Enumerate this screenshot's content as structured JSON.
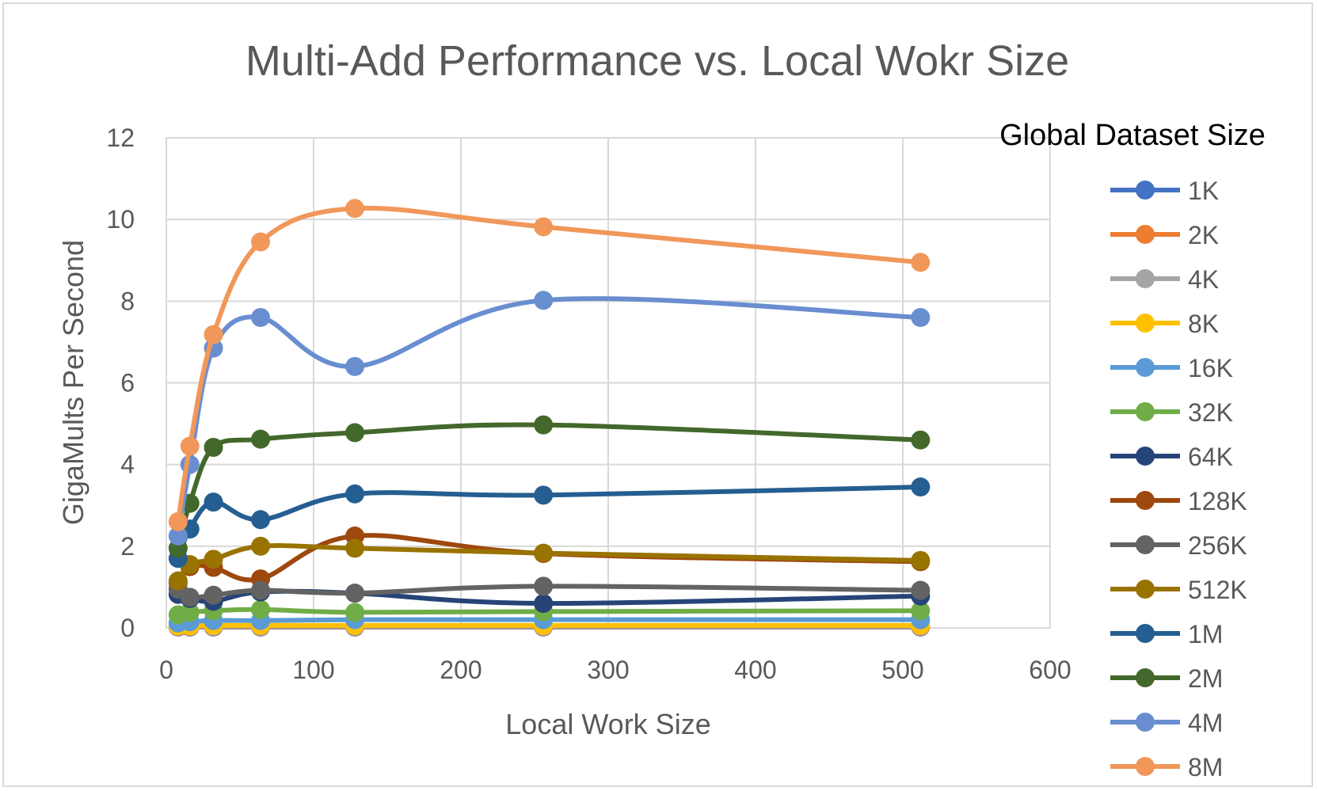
{
  "chart_data": {
    "type": "line",
    "title": "Multi-Add Performance vs. Local Wokr Size",
    "xlabel": "Local Work Size",
    "ylabel": "GigaMults Per Second",
    "xlim": [
      0,
      600
    ],
    "ylim": [
      0,
      12
    ],
    "xticks": [
      0,
      100,
      200,
      300,
      400,
      500,
      600
    ],
    "yticks": [
      0,
      2,
      4,
      6,
      8,
      10,
      12
    ],
    "grid": true,
    "smooth": true,
    "legend_title": "Global Dataset Size",
    "legend_position": "right",
    "x": [
      8,
      16,
      32,
      64,
      128,
      256,
      512
    ],
    "series": [
      {
        "name": "1K",
        "color": "#4472C4",
        "values": [
          0.02,
          0.02,
          0.02,
          0.02,
          0.02,
          0.02,
          0.02
        ]
      },
      {
        "name": "2K",
        "color": "#ED7D31",
        "values": [
          0.03,
          0.03,
          0.03,
          0.03,
          0.03,
          0.03,
          0.03
        ]
      },
      {
        "name": "4K",
        "color": "#A5A5A5",
        "values": [
          0.04,
          0.04,
          0.04,
          0.04,
          0.04,
          0.04,
          0.04
        ]
      },
      {
        "name": "8K",
        "color": "#FFC000",
        "values": [
          0.05,
          0.05,
          0.06,
          0.06,
          0.06,
          0.06,
          0.06
        ]
      },
      {
        "name": "16K",
        "color": "#5B9BD5",
        "values": [
          0.12,
          0.15,
          0.18,
          0.18,
          0.2,
          0.2,
          0.2
        ]
      },
      {
        "name": "32K",
        "color": "#70AD47",
        "values": [
          0.32,
          0.38,
          0.42,
          0.45,
          0.38,
          0.4,
          0.42
        ]
      },
      {
        "name": "64K",
        "color": "#264478",
        "values": [
          0.82,
          0.72,
          0.65,
          0.88,
          0.85,
          0.6,
          0.78
        ]
      },
      {
        "name": "128K",
        "color": "#9E480E",
        "values": [
          1.1,
          1.5,
          1.48,
          1.2,
          2.25,
          1.82,
          1.62
        ]
      },
      {
        "name": "256K",
        "color": "#636363",
        "values": [
          0.95,
          0.75,
          0.8,
          0.92,
          0.85,
          1.02,
          0.92
        ]
      },
      {
        "name": "512K",
        "color": "#997300",
        "values": [
          1.15,
          1.55,
          1.68,
          2.0,
          1.95,
          1.83,
          1.65
        ]
      },
      {
        "name": "1M",
        "color": "#255E91",
        "values": [
          1.7,
          2.42,
          3.08,
          2.65,
          3.28,
          3.25,
          3.45
        ]
      },
      {
        "name": "2M",
        "color": "#43682B",
        "values": [
          1.95,
          3.05,
          4.42,
          4.62,
          4.78,
          4.97,
          4.6
        ]
      },
      {
        "name": "4M",
        "color": "#698ED0",
        "values": [
          2.25,
          4.0,
          6.85,
          7.6,
          6.4,
          8.02,
          7.6
        ]
      },
      {
        "name": "8M",
        "color": "#F1975A",
        "values": [
          2.6,
          4.45,
          7.18,
          9.45,
          10.27,
          9.82,
          8.95
        ]
      }
    ]
  }
}
